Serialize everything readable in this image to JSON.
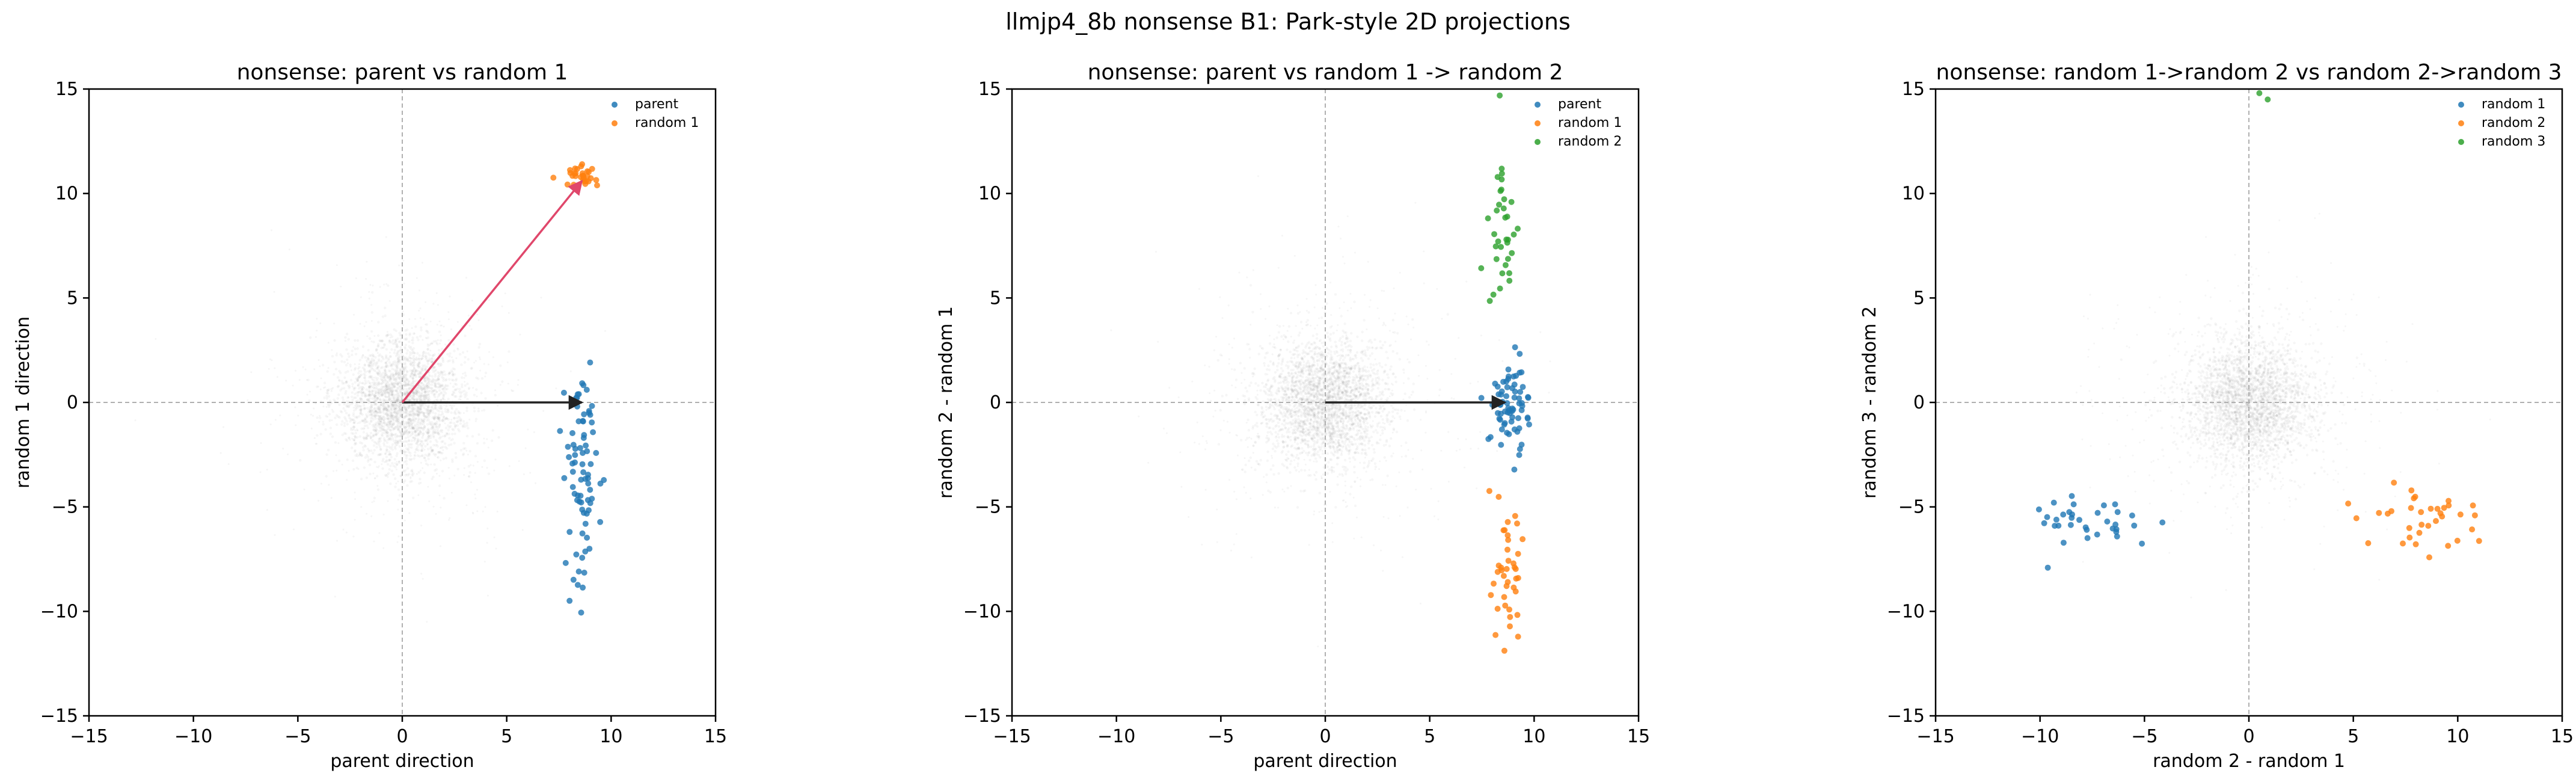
{
  "figure": {
    "suptitle": "llmjp4_8b nonsense B1: Park-style 2D projections",
    "colors": {
      "blue": "#1f77b4",
      "orange": "#ff7f0e",
      "green": "#2ca02c",
      "red_arrow": "#e0476b",
      "black_arrow": "#222222",
      "cloud": "#555555",
      "zero_line": "#b0b0b0"
    }
  },
  "chart_data": [
    {
      "type": "scatter",
      "title": "nonsense: parent vs random 1",
      "xlabel": "parent direction",
      "ylabel": "random 1 direction",
      "xlim": [
        -15,
        15
      ],
      "ylim": [
        -15,
        15
      ],
      "xticks": [
        -15,
        -10,
        -5,
        0,
        5,
        10,
        15
      ],
      "yticks": [
        -15,
        -10,
        -5,
        0,
        5,
        10,
        15
      ],
      "grid": false,
      "zero_lines": true,
      "legend_position": "top-right",
      "background_cloud": {
        "center": [
          0,
          0
        ],
        "spread": 1.5
      },
      "arrows": [
        {
          "from": [
            0,
            0
          ],
          "to": [
            8.6,
            0
          ],
          "color": "black"
        },
        {
          "from": [
            0,
            0
          ],
          "to": [
            8.6,
            10.6
          ],
          "color": "red"
        }
      ],
      "series": [
        {
          "name": "parent",
          "color": "blue",
          "center": [
            8.6,
            -3.8
          ],
          "spread": [
            0.4,
            2.5
          ],
          "count": 80
        },
        {
          "name": "random 1",
          "color": "orange",
          "center": [
            8.5,
            10.8
          ],
          "spread": [
            0.4,
            0.25
          ],
          "count": 30
        }
      ]
    },
    {
      "type": "scatter",
      "title": "nonsense: parent vs random 1 -> random 2",
      "xlabel": "parent direction",
      "ylabel": "random 2 - random 1",
      "xlim": [
        -15,
        15
      ],
      "ylim": [
        -15,
        15
      ],
      "xticks": [
        -15,
        -10,
        -5,
        0,
        5,
        10,
        15
      ],
      "yticks": [
        -15,
        -10,
        -5,
        0,
        5,
        10,
        15
      ],
      "grid": false,
      "zero_lines": true,
      "legend_position": "top-right",
      "background_cloud": {
        "center": [
          0,
          0
        ],
        "spread": 1.5
      },
      "arrows": [
        {
          "from": [
            0,
            0
          ],
          "to": [
            8.6,
            0
          ],
          "color": "black"
        }
      ],
      "series": [
        {
          "name": "parent",
          "color": "blue",
          "center": [
            8.8,
            0
          ],
          "spread": [
            0.45,
            1.1
          ],
          "count": 70
        },
        {
          "name": "random 1",
          "color": "orange",
          "center": [
            8.6,
            -7.8
          ],
          "spread": [
            0.4,
            1.6
          ],
          "count": 40
        },
        {
          "name": "random 2",
          "color": "green",
          "center": [
            8.5,
            8.8
          ],
          "spread": [
            0.45,
            1.6
          ],
          "count": 35
        }
      ]
    },
    {
      "type": "scatter",
      "title": "nonsense: random 1->random 2 vs random 2->random 3",
      "xlabel": "random 2 - random 1",
      "ylabel": "random 3 - random 2",
      "xlim": [
        -15,
        15
      ],
      "ylim": [
        -15,
        15
      ],
      "xticks": [
        -15,
        -10,
        -5,
        0,
        5,
        10,
        15
      ],
      "yticks": [
        -15,
        -10,
        -5,
        0,
        5,
        10,
        15
      ],
      "grid": false,
      "zero_lines": true,
      "legend_position": "top-right",
      "background_cloud": {
        "center": [
          0,
          0
        ],
        "spread": 1.5
      },
      "arrows": [],
      "series": [
        {
          "name": "random 1",
          "color": "blue",
          "center": [
            -7.8,
            -5.5
          ],
          "spread": [
            1.5,
            0.8
          ],
          "count": 35
        },
        {
          "name": "random 2",
          "color": "orange",
          "center": [
            8.7,
            -5.6
          ],
          "spread": [
            1.5,
            0.9
          ],
          "count": 35
        },
        {
          "name": "random 3",
          "color": "green",
          "points": [
            [
              0.5,
              14.8
            ],
            [
              0.9,
              14.5
            ]
          ]
        }
      ]
    }
  ]
}
